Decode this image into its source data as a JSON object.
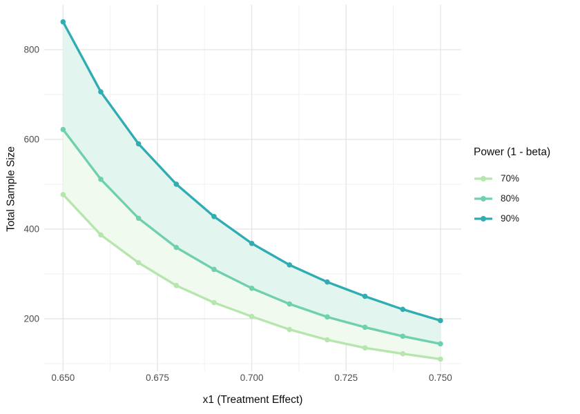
{
  "chart_data": {
    "type": "line",
    "title": "",
    "xlabel": "x1 (Treatment Effect)",
    "ylabel": "Total Sample Size",
    "x": [
      0.65,
      0.66,
      0.67,
      0.68,
      0.69,
      0.7,
      0.71,
      0.72,
      0.73,
      0.74,
      0.75
    ],
    "series": [
      {
        "name": "70%",
        "color": "#b6e6ae",
        "values": [
          477,
          387,
          325,
          274,
          236,
          205,
          176,
          153,
          135,
          122,
          110
        ]
      },
      {
        "name": "80%",
        "color": "#6fd0ad",
        "values": [
          622,
          511,
          424,
          359,
          310,
          268,
          233,
          204,
          181,
          161,
          144
        ]
      },
      {
        "name": "90%",
        "color": "#2fadb2",
        "values": [
          862,
          706,
          590,
          500,
          428,
          368,
          320,
          282,
          250,
          221,
          196
        ]
      }
    ],
    "ribbons": [
      {
        "lower": "70%",
        "upper": "80%",
        "fill": "#f1faee"
      },
      {
        "lower": "80%",
        "upper": "90%",
        "fill": "#e3f5ef"
      }
    ],
    "x_ticks": [
      0.65,
      0.675,
      0.7,
      0.725,
      0.75
    ],
    "x_tick_labels": [
      "0.650",
      "0.675",
      "0.700",
      "0.725",
      "0.750"
    ],
    "x_minor_ticks": [
      0.6625,
      0.6875,
      0.7125,
      0.7375
    ],
    "y_ticks": [
      200,
      400,
      600,
      800
    ],
    "y_tick_labels": [
      "200",
      "400",
      "600",
      "800"
    ],
    "y_minor_ticks": [
      100,
      300,
      500,
      700
    ],
    "xlim": [
      0.645,
      0.7555
    ],
    "ylim": [
      83,
      900
    ],
    "grid": "major and minor, light gray on white",
    "legend": {
      "title": "Power (1 - beta)",
      "position": "right",
      "items": [
        "70%",
        "80%",
        "90%"
      ]
    },
    "colors": {
      "background": "#ffffff",
      "grid_major": "#e4e4e4",
      "grid_minor": "#f1f1f1",
      "tick_label": "#4d4d4d",
      "axis_title": "#0d0d0d"
    }
  }
}
